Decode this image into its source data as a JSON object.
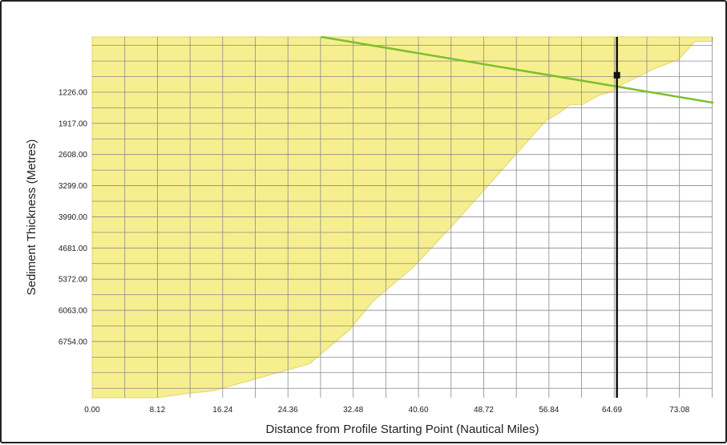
{
  "chart_data": {
    "type": "area",
    "title": "",
    "xlabel": "Distance from Profile Starting Point (Nautical Miles)",
    "ylabel": "Sediment Thickness (Metres)",
    "xlim": [
      0,
      77.2
    ],
    "ylim": [
      8000,
      0
    ],
    "x_ticks": [
      "0.00",
      "8.12",
      "16.24",
      "24.36",
      "32.48",
      "40.60",
      "48.72",
      "56.84",
      "64.69",
      "73.08"
    ],
    "y_ticks": [
      "1226.00",
      "1917.00",
      "2608.00",
      "3299.00",
      "3990.00",
      "4681.00",
      "5372.00",
      "6063.00",
      "6754.00"
    ],
    "grid": true,
    "series": [
      {
        "kind": "sediment-profile",
        "color": "#f7ef8f",
        "x": [
          0.0,
          8.0,
          12.0,
          15.0,
          18.0,
          24.0,
          27.0,
          32.0,
          35.0,
          40.0,
          45.0,
          50.0,
          54.0,
          56.5,
          58.0,
          59.5,
          61.0,
          63.0,
          64.5,
          66.0,
          70.0,
          73.0,
          75.0,
          77.2
        ],
        "y": [
          8000,
          8000,
          7900,
          7850,
          7700,
          7400,
          7250,
          6500,
          5850,
          5100,
          4150,
          3150,
          2350,
          1850,
          1700,
          1500,
          1500,
          1300,
          1226,
          1050,
          700,
          500,
          100,
          100
        ]
      },
      {
        "kind": "trend-line",
        "color": "#7dbf2e",
        "x": [
          28.5,
          77.3
        ],
        "y": [
          0,
          1460
        ]
      },
      {
        "kind": "marker-line",
        "color": "#111111",
        "x": [
          65.3,
          65.3
        ],
        "y": [
          0,
          8000
        ]
      },
      {
        "kind": "point",
        "color": "#111111",
        "x": [
          65.3
        ],
        "y": [
          850
        ]
      }
    ]
  }
}
